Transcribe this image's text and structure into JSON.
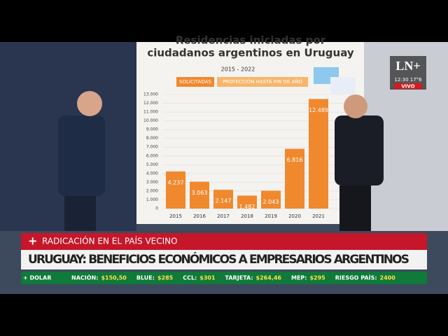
{
  "logo": {
    "brand": "LN+",
    "clock": "12:30 17°6",
    "live": "VIVO"
  },
  "chart": {
    "title_lines": [
      "Residencias iniciadas por",
      "ciudadanos argentinos en Uruguay"
    ],
    "subtitle": "2015 - 2022",
    "legend": [
      "SOLICITADAS",
      "PROYECCIÓN HASTA FIN DE AÑO"
    ],
    "color": "#f0892e",
    "categories": [
      "2015",
      "2016",
      "2017",
      "2018",
      "2019",
      "2020",
      "2021"
    ],
    "values": [
      4237,
      3063,
      2147,
      1482,
      2043,
      6816,
      12489
    ],
    "value_labels": [
      "4.237",
      "3.063",
      "2.147",
      "1.482",
      "2.043",
      "6.816",
      "12.489"
    ],
    "ylim": [
      0,
      13000
    ],
    "yticks": [
      0,
      {
        "value": 1000,
        "label": "1.000"
      },
      {
        "value": 2000,
        "label": "2.000"
      },
      {
        "value": 3000,
        "label": "3.000"
      },
      {
        "value": 4000,
        "label": "4.000"
      },
      {
        "value": 5000,
        "label": "5.000"
      },
      {
        "value": 6000,
        "label": "6.000"
      },
      {
        "value": 7000,
        "label": "7.000"
      },
      {
        "value": 8000,
        "label": "8.000"
      },
      {
        "value": 9000,
        "label": "9.000"
      },
      {
        "value": 10000,
        "label": "10.000"
      },
      {
        "value": 11000,
        "label": "11.000"
      },
      {
        "value": 12000,
        "label": "12.000"
      },
      {
        "value": 13000,
        "label": "13.000"
      }
    ]
  },
  "lower_third": {
    "kicker": "RADICACIÓN EN EL PAÍS VECINO",
    "headline": "URUGUAY: BENEFICIOS ECONÓMICOS A EMPRESARIOS ARGENTINOS"
  },
  "ticker": {
    "label": "+ DOLAR",
    "items": [
      {
        "name": "NACIÓN:",
        "value": "$150,50"
      },
      {
        "name": "BLUE:",
        "value": "$285"
      },
      {
        "name": "CCL:",
        "value": "$301"
      },
      {
        "name": "TARJETA:",
        "value": "$264,46"
      },
      {
        "name": "MEP:",
        "value": "$295"
      },
      {
        "name": "RIESGO PAÍS:",
        "value": "2400"
      }
    ]
  }
}
